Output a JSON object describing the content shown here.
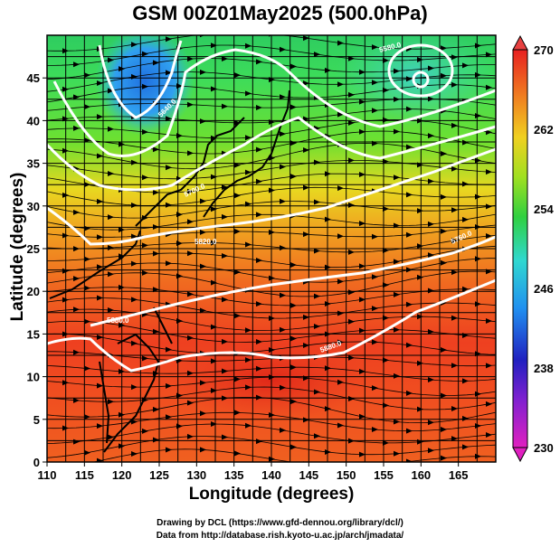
{
  "header": {
    "title": "GSM 00Z01May2025 (500.0hPa)"
  },
  "axes": {
    "xlabel": "Longitude (degrees)",
    "ylabel": "Latitude  (degrees)",
    "xlim": [
      110,
      170
    ],
    "ylim": [
      0,
      50
    ],
    "xticks": [
      "110",
      "115",
      "120",
      "125",
      "130",
      "135",
      "140",
      "145",
      "150",
      "155",
      "160",
      "165"
    ],
    "yticks": [
      "0",
      "5",
      "10",
      "15",
      "20",
      "25",
      "30",
      "35",
      "40",
      "45"
    ]
  },
  "colorbar": {
    "ticks": [
      "230",
      "238",
      "246",
      "254",
      "262",
      "270"
    ],
    "range": [
      230,
      270
    ]
  },
  "contour_labels": [
    "5880.0",
    "5820.0",
    "5700.0",
    "5640.0",
    "5760.0",
    "5580.0"
  ],
  "credits": {
    "line1": "Drawing by DCL (https://www.gfd-dennou.org/library/dcl/)",
    "line2": "Data from http://database.rish.kyoto-u.ac.jp/arch/jmadata/"
  }
}
